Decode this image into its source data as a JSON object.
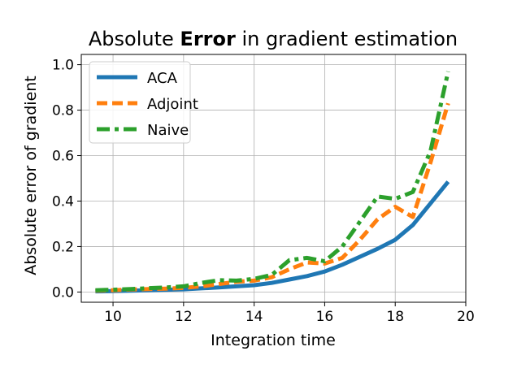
{
  "chart_data": {
    "type": "line",
    "title_parts": [
      {
        "text": "Absolute ",
        "bold": false
      },
      {
        "text": "Error",
        "bold": true
      },
      {
        "text": " in gradient estimation",
        "bold": false
      }
    ],
    "xlabel": "Integration time",
    "ylabel": "Absolute error of gradient",
    "xlim": [
      9.1,
      20.0
    ],
    "ylim": [
      -0.045,
      1.045
    ],
    "xticks": [
      10,
      12,
      14,
      16,
      18,
      20
    ],
    "yticks": [
      0.0,
      0.2,
      0.4,
      0.6,
      0.8,
      1.0
    ],
    "ytick_labels": [
      "0.0",
      "0.2",
      "0.4",
      "0.6",
      "0.8",
      "1.0"
    ],
    "grid": true,
    "legend_position": "top-left",
    "series": [
      {
        "name": "ACA",
        "color": "#1f77b4",
        "style": "solid",
        "x": [
          9.5,
          10,
          10.5,
          11,
          11.5,
          12,
          12.5,
          13,
          13.5,
          14,
          14.5,
          15,
          15.5,
          16,
          16.5,
          17,
          17.5,
          18,
          18.5,
          19,
          19.5
        ],
        "y": [
          0.003,
          0.004,
          0.006,
          0.008,
          0.01,
          0.012,
          0.016,
          0.02,
          0.025,
          0.03,
          0.04,
          0.055,
          0.07,
          0.09,
          0.12,
          0.155,
          0.19,
          0.23,
          0.295,
          0.39,
          0.485
        ]
      },
      {
        "name": "Adjoint",
        "color": "#ff7f0e",
        "style": "dashed",
        "x": [
          9.5,
          10,
          10.5,
          11,
          11.5,
          12,
          12.5,
          13,
          13.5,
          14,
          14.5,
          15,
          15.5,
          16,
          16.5,
          17,
          17.5,
          18,
          18.5,
          19,
          19.5
        ],
        "y": [
          0.006,
          0.008,
          0.011,
          0.013,
          0.015,
          0.018,
          0.025,
          0.035,
          0.045,
          0.05,
          0.065,
          0.1,
          0.13,
          0.125,
          0.15,
          0.23,
          0.32,
          0.375,
          0.33,
          0.57,
          0.83
        ]
      },
      {
        "name": "Naive",
        "color": "#2ca02c",
        "style": "dashdot",
        "x": [
          9.5,
          10,
          10.5,
          11,
          11.5,
          12,
          12.5,
          13,
          13.5,
          14,
          14.5,
          15,
          15.5,
          16,
          16.5,
          17,
          17.5,
          18,
          18.5,
          19,
          19.5
        ],
        "y": [
          0.008,
          0.01,
          0.013,
          0.017,
          0.02,
          0.025,
          0.04,
          0.052,
          0.05,
          0.058,
          0.075,
          0.14,
          0.15,
          0.135,
          0.2,
          0.31,
          0.42,
          0.41,
          0.44,
          0.62,
          0.97
        ]
      }
    ]
  }
}
